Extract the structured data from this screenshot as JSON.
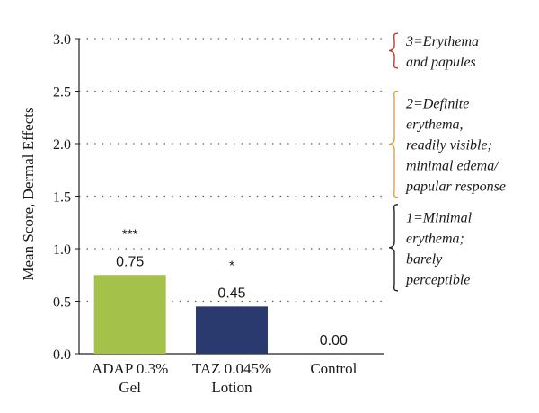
{
  "chart_data": {
    "type": "bar",
    "categories": [
      [
        "ADAP 0.3%",
        "Gel"
      ],
      [
        "TAZ 0.045%",
        "Lotion"
      ],
      [
        "Control"
      ]
    ],
    "values": [
      0.75,
      0.45,
      0.0
    ],
    "value_labels": [
      "0.75",
      "0.45",
      "0.00"
    ],
    "significance": [
      "***",
      "*",
      ""
    ],
    "bar_colors": [
      "#a4c24a",
      "#2b3a6e",
      "#2b3a6e"
    ],
    "ylabel": "Mean Score, Dermal Effects",
    "xlabel": "",
    "ylim": [
      0,
      3
    ],
    "yticks": [
      "0.0",
      "0.5",
      "1.0",
      "1.5",
      "2.0",
      "2.5",
      "3.0"
    ],
    "grid": "horizontal dotted",
    "annotations": [
      {
        "lines": [
          "3=Erythema",
          "and papules"
        ],
        "range": [
          2.72,
          3.05
        ],
        "brace_color": "#c0392b"
      },
      {
        "lines": [
          "2=Definite",
          "erythema,",
          "readily visible;",
          "minimal edema/",
          "papular response"
        ],
        "range": [
          1.49,
          2.5
        ],
        "brace_color": "#e0a040"
      },
      {
        "lines": [
          "1=Minimal",
          "erythema;",
          "barely",
          "perceptible"
        ],
        "range": [
          0.6,
          1.42
        ],
        "brace_color": "#222222"
      }
    ]
  }
}
